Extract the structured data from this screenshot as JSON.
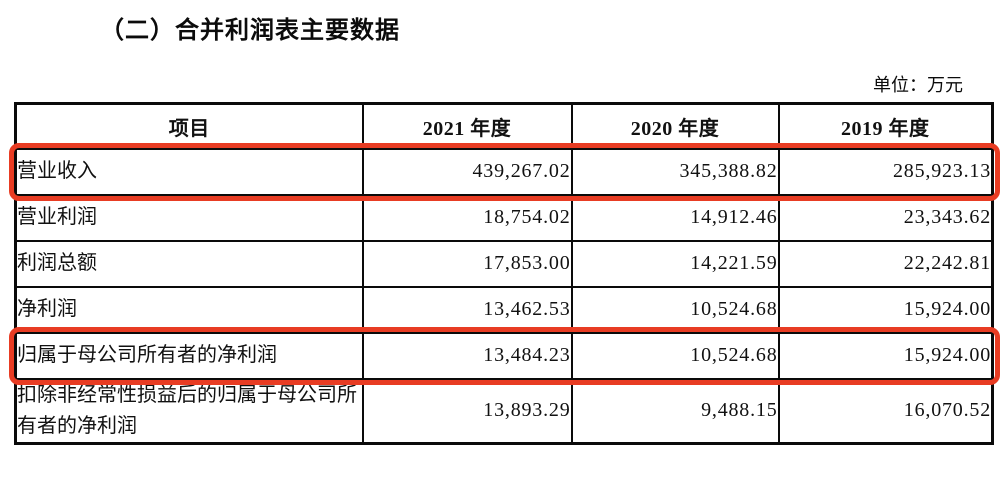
{
  "page": {
    "title": "（二）合并利润表主要数据",
    "unit_label": "单位：万元"
  },
  "table": {
    "highlight_color": "#e83c23",
    "columns": [
      "项目",
      "2021 年度",
      "2020 年度",
      "2019 年度"
    ],
    "rows": [
      {
        "label": "营业收入",
        "values": [
          "439,267.02",
          "345,388.82",
          "285,923.13"
        ],
        "highlighted": true
      },
      {
        "label": "营业利润",
        "values": [
          "18,754.02",
          "14,912.46",
          "23,343.62"
        ],
        "highlighted": false
      },
      {
        "label": "利润总额",
        "values": [
          "17,853.00",
          "14,221.59",
          "22,242.81"
        ],
        "highlighted": false
      },
      {
        "label": "净利润",
        "values": [
          "13,462.53",
          "10,524.68",
          "15,924.00"
        ],
        "highlighted": false
      },
      {
        "label": "归属于母公司所有者的净利润",
        "values": [
          "13,484.23",
          "10,524.68",
          "15,924.00"
        ],
        "highlighted": true
      },
      {
        "label": "扣除非经常性损益后的归属于母公司所有者的净利润",
        "values": [
          "13,893.29",
          "9,488.15",
          "16,070.52"
        ],
        "highlighted": false
      }
    ]
  }
}
